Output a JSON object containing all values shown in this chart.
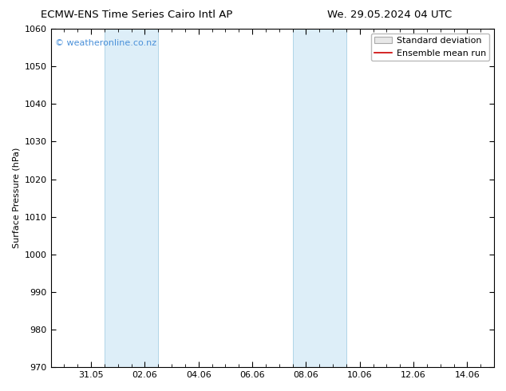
{
  "title_left": "ECMW-ENS Time Series Cairo Intl AP",
  "title_right": "We. 29.05.2024 04 UTC",
  "ylabel": "Surface Pressure (hPa)",
  "ylim": [
    970,
    1060
  ],
  "yticks": [
    970,
    980,
    990,
    1000,
    1010,
    1020,
    1030,
    1040,
    1050,
    1060
  ],
  "xtick_labels": [
    "31.05",
    "02.06",
    "04.06",
    "06.06",
    "08.06",
    "10.06",
    "12.06",
    "14.06"
  ],
  "xtick_positions": [
    31.0,
    33.0,
    35.0,
    37.0,
    39.0,
    41.0,
    43.0,
    45.0
  ],
  "xlim_left": 29.5,
  "xlim_right": 46.0,
  "shaded_bands": [
    {
      "x_start": 31.5,
      "x_end": 33.5
    },
    {
      "x_start": 38.5,
      "x_end": 40.5
    }
  ],
  "shaded_color": "#ddeef8",
  "shaded_edge_color": "#b0d4e8",
  "watermark_text": "© weatheronline.co.nz",
  "watermark_color": "#4a90d9",
  "legend_std_label": "Standard deviation",
  "legend_mean_label": "Ensemble mean run",
  "legend_std_facecolor": "#e8e8e8",
  "legend_std_edgecolor": "#aaaaaa",
  "legend_mean_color": "#cc0000",
  "background_color": "#ffffff",
  "title_fontsize": 9.5,
  "axis_label_fontsize": 8,
  "tick_fontsize": 8,
  "watermark_fontsize": 8,
  "legend_fontsize": 8
}
